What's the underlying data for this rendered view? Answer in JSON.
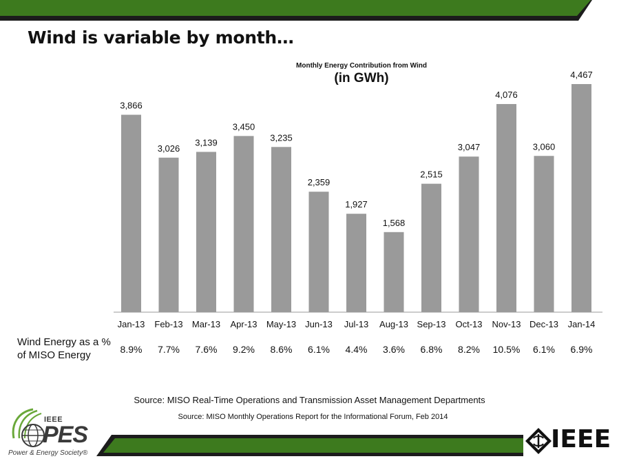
{
  "slide": {
    "title": "Wind is variable by month…",
    "percent_row_label_line1": "Wind Energy as a %",
    "percent_row_label_line2": "of MISO Energy",
    "source_1": "Source: MISO Real-Time Operations and Transmission Asset Management Departments",
    "source_2": "Source: MISO Monthly Operations Report for the Informational Forum, Feb 2014",
    "pes_logo": {
      "top_text": "IEEE",
      "main_text": "PES",
      "tagline": "Power & Energy Society®"
    },
    "ieee_logo": {
      "text": "IEEE"
    },
    "colors": {
      "band_green": "#3d7a1e",
      "band_dark": "#1c1c1c",
      "bar_gray": "#9a9a9a",
      "logo_green": "#6aa83a"
    }
  },
  "chart_data": {
    "type": "bar",
    "title": "Monthly Energy Contribution from Wind",
    "subtitle": "(in GWh)",
    "categories": [
      "Jan-13",
      "Feb-13",
      "Mar-13",
      "Apr-13",
      "May-13",
      "Jun-13",
      "Jul-13",
      "Aug-13",
      "Sep-13",
      "Oct-13",
      "Nov-13",
      "Dec-13",
      "Jan-14"
    ],
    "values": [
      3866,
      3026,
      3139,
      3450,
      3235,
      2359,
      1927,
      1568,
      2515,
      3047,
      4076,
      3060,
      4467
    ],
    "value_labels": [
      "3,866",
      "3,026",
      "3,139",
      "3,450",
      "3,235",
      "2,359",
      "1,927",
      "1,568",
      "2,515",
      "3,047",
      "4,076",
      "3,060",
      "4,467"
    ],
    "percent_of_miso": [
      "8.9%",
      "7.7%",
      "7.6%",
      "9.2%",
      "8.6%",
      "6.1%",
      "4.4%",
      "3.6%",
      "6.8%",
      "8.2%",
      "10.5%",
      "6.1%",
      "6.9%"
    ],
    "ylim": [
      0,
      4467
    ],
    "grid": false,
    "bar_color": "#9a9a9a"
  }
}
